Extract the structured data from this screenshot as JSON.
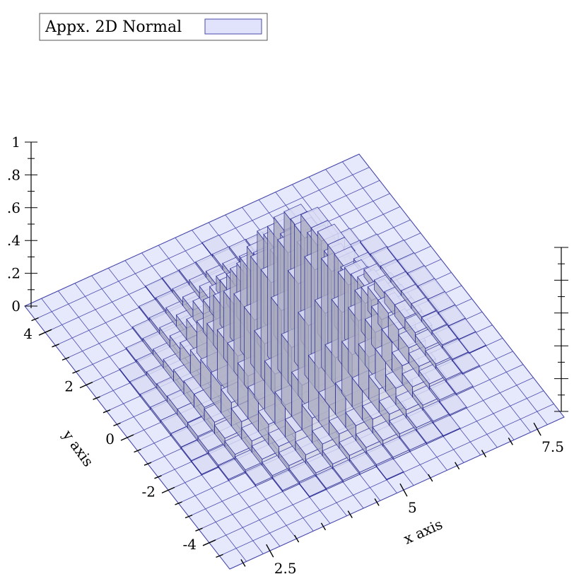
{
  "chart_data": {
    "type": "3d-histogram",
    "title": "",
    "xlabel": "x axis",
    "ylabel": "y axis",
    "zlabel": "",
    "xlim": [
      1.75,
      8
    ],
    "ylim": [
      -5,
      5
    ],
    "zlim": [
      0,
      1
    ],
    "x_ticks": [
      "2.5",
      "5",
      "7.5"
    ],
    "y_ticks": [
      "-4",
      "-2",
      "0",
      "2",
      "4"
    ],
    "z_ticks": [
      "0",
      ".2",
      ".4",
      ".6",
      ".8",
      "1"
    ],
    "legend": {
      "label": "Appx. 2D Normal",
      "position": "top-left"
    },
    "series": [
      {
        "name": "Appx. 2D Normal",
        "color": "#d9dcf5",
        "edge_color": "#1a1a8c",
        "bin_width_x": 0.3125,
        "bin_width_y": 0.5,
        "mean": [
          5,
          0
        ],
        "std": [
          0.85,
          1.3
        ],
        "peak": 0.85
      }
    ]
  }
}
